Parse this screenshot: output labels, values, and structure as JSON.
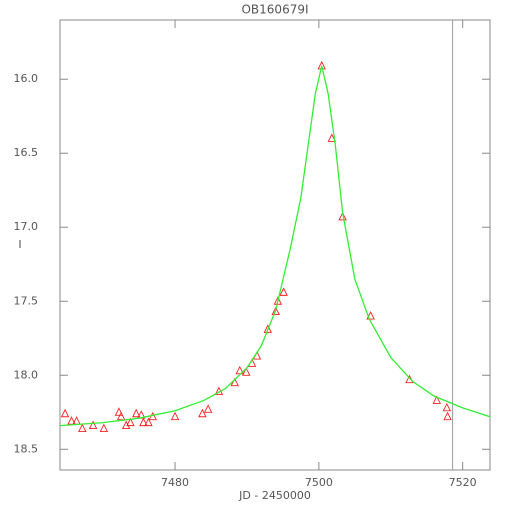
{
  "chart_data": {
    "type": "scatter",
    "title": "OB160679I",
    "x_label": "JD - 2450000",
    "y_label": "I",
    "xlim": [
      7464,
      7523.8
    ],
    "ylim": [
      18.64,
      15.6
    ],
    "xticks": [
      7480,
      7500,
      7520
    ],
    "yticks": [
      {
        "value": 16,
        "label": "16.0"
      },
      16.5,
      {
        "value": 17,
        "label": "17.0"
      },
      17.5,
      {
        "value": 18,
        "label": "18.0"
      },
      18.5
    ],
    "series": [
      {
        "color": "#ff2020",
        "marker": "triangle",
        "x": [
          7464.7,
          7465.6,
          7466.3,
          7467.1,
          7468.6,
          7470.1,
          7472.2,
          7472.5,
          7473.2,
          7473.8,
          7474.6,
          7475.3,
          7475.6,
          7476.3,
          7476.9,
          7480,
          7483.8,
          7484.6,
          7486.1,
          7488.3,
          7489.0,
          7489.9,
          7490.7,
          7491.4,
          7492.9,
          7494.0,
          7494.3,
          7495.1,
          7500.4,
          7501.8,
          7503.3,
          7507.2,
          7512.6,
          7516.4,
          7517.8,
          7517.9
        ],
        "values": [
          18.26,
          18.31,
          18.31,
          18.36,
          18.34,
          18.36,
          18.25,
          18.28,
          18.34,
          18.32,
          18.26,
          18.27,
          18.32,
          18.32,
          18.28,
          18.28,
          18.26,
          18.23,
          18.11,
          18.05,
          17.97,
          17.98,
          17.92,
          17.87,
          17.69,
          17.57,
          17.5,
          17.44,
          15.91,
          16.4,
          16.93,
          17.6,
          18.03,
          18.17,
          18.22,
          18.28
        ]
      },
      {
        "color": "#33ee33",
        "marker": "line",
        "x": [
          7464,
          7470,
          7475,
          7480,
          7484,
          7487,
          7490,
          7492,
          7494,
          7496,
          7497.5,
          7498.5,
          7499.5,
          7500.4,
          7501.3,
          7502.3,
          7503.3,
          7505,
          7507,
          7510,
          7513,
          7516,
          7520,
          7523.8
        ],
        "values": [
          18.34,
          18.32,
          18.29,
          18.24,
          18.17,
          18.09,
          17.95,
          17.8,
          17.56,
          17.15,
          16.8,
          16.45,
          16.1,
          15.91,
          16.1,
          16.45,
          16.9,
          17.35,
          17.62,
          17.88,
          18.04,
          18.14,
          18.22,
          18.28
        ]
      }
    ],
    "vlines": [
      7518.6
    ],
    "vline_color": "#999999"
  }
}
